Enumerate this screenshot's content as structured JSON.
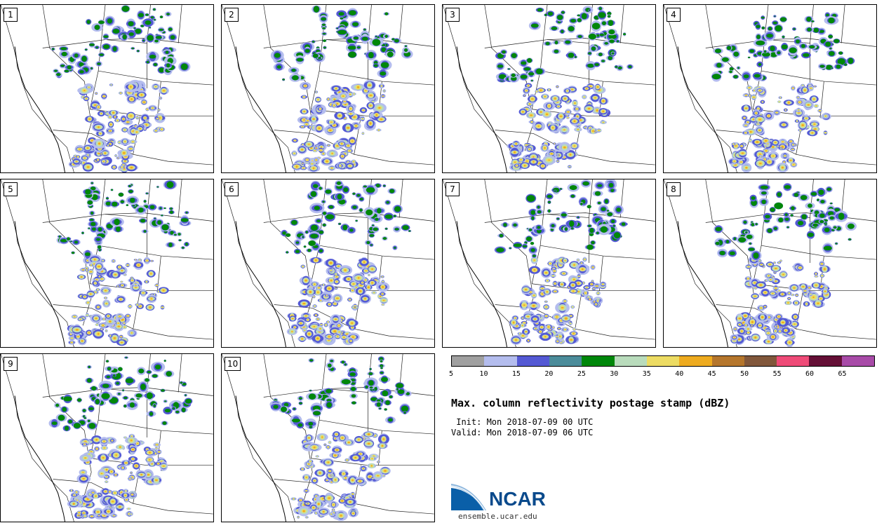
{
  "panels": [
    {
      "label": "1"
    },
    {
      "label": "2"
    },
    {
      "label": "3"
    },
    {
      "label": "4"
    },
    {
      "label": "5"
    },
    {
      "label": "6"
    },
    {
      "label": "7"
    },
    {
      "label": "8"
    },
    {
      "label": "9"
    },
    {
      "label": "10"
    }
  ],
  "colorbar": {
    "colors": [
      "#a0a0a0",
      "#b4bdee",
      "#5459d4",
      "#4b8c9a",
      "#00870a",
      "#b9dcbc",
      "#eddc63",
      "#eeab1f",
      "#b5762c",
      "#81573b",
      "#ef4b78",
      "#640f36",
      "#a84ba8"
    ],
    "ticks": [
      "5",
      "10",
      "15",
      "20",
      "25",
      "30",
      "35",
      "40",
      "45",
      "50",
      "55",
      "60",
      "65"
    ]
  },
  "title": "Max. column reflectivity postage stamp (dBZ)",
  "init": " Init: Mon 2018-07-09 00 UTC",
  "valid": "Valid: Mon 2018-07-09 06 UTC",
  "logo": {
    "name": "NCAR",
    "url": "ensemble.ucar.edu"
  }
}
